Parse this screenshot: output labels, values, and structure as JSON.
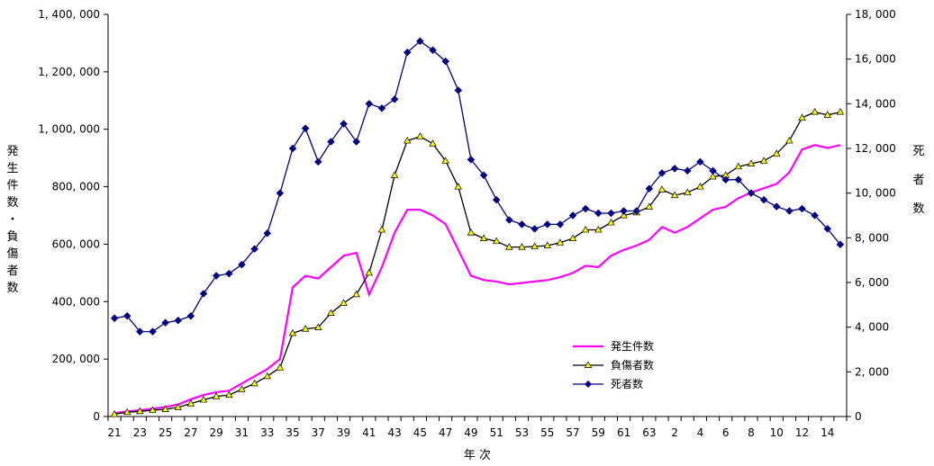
{
  "chart_data": {
    "type": "line",
    "xlabel": "年 次",
    "y_left_label": "発生件数・負傷者数",
    "y_right_label": "死者数",
    "y_left_range": [
      0,
      1400000
    ],
    "y_right_range": [
      0,
      18000
    ],
    "y_left_ticks": [
      "0",
      "200, 000",
      "400, 000",
      "600, 000",
      "800, 000",
      "1, 000, 000",
      "1, 200, 000",
      "1, 400, 000"
    ],
    "y_right_ticks": [
      "0",
      "2, 000",
      "4, 000",
      "6, 000",
      "8, 000",
      "10, 000",
      "12, 000",
      "14, 000",
      "16, 000",
      "18, 000"
    ],
    "x_tick_labels": [
      "21",
      "23",
      "25",
      "27",
      "29",
      "31",
      "33",
      "35",
      "37",
      "39",
      "41",
      "43",
      "45",
      "47",
      "49",
      "51",
      "53",
      "55",
      "57",
      "59",
      "61",
      "63",
      "2",
      "4",
      "6",
      "8",
      "10",
      "12",
      "14"
    ],
    "grid": false,
    "legend_position": "bottom-right",
    "legend": [
      {
        "name": "発生件数",
        "color": "#ff00ff",
        "marker": "none"
      },
      {
        "name": "負傷者数",
        "color": "#000000",
        "marker": "triangle-yellow"
      },
      {
        "name": "死者数",
        "color": "#000080",
        "marker": "diamond"
      }
    ],
    "series": [
      {
        "name": "発生件数",
        "axis": "left",
        "color": "#ff00ff",
        "values": [
          12000,
          18000,
          22000,
          27000,
          33000,
          42000,
          60000,
          75000,
          85000,
          90000,
          115000,
          140000,
          165000,
          200000,
          450000,
          490000,
          480000,
          520000,
          560000,
          570000,
          425000,
          520000,
          640000,
          720000,
          720000,
          700000,
          670000,
          580000,
          490000,
          475000,
          470000,
          460000,
          465000,
          470000,
          475000,
          485000,
          500000,
          525000,
          520000,
          560000,
          580000,
          595000,
          615000,
          660000,
          640000,
          660000,
          690000,
          720000,
          730000,
          760000,
          780000,
          795000,
          810000,
          850000,
          930000,
          945000,
          935000,
          945000
        ]
      },
      {
        "name": "負傷者数",
        "axis": "left",
        "color": "#000000",
        "values": [
          8000,
          15000,
          18000,
          22000,
          25000,
          32000,
          45000,
          58000,
          70000,
          75000,
          95000,
          115000,
          140000,
          170000,
          290000,
          305000,
          310000,
          360000,
          395000,
          425000,
          500000,
          650000,
          840000,
          960000,
          975000,
          950000,
          890000,
          800000,
          640000,
          620000,
          610000,
          590000,
          590000,
          592000,
          595000,
          605000,
          620000,
          650000,
          650000,
          675000,
          700000,
          710000,
          730000,
          790000,
          770000,
          780000,
          800000,
          835000,
          840000,
          870000,
          880000,
          890000,
          915000,
          960000,
          1040000,
          1060000,
          1050000,
          1060000
        ]
      },
      {
        "name": "死者数",
        "axis": "right",
        "color": "#000080",
        "values": [
          4400,
          4500,
          3800,
          3800,
          4200,
          4300,
          4500,
          5500,
          6300,
          6400,
          6800,
          7500,
          8200,
          10000,
          12000,
          12900,
          11400,
          12300,
          13100,
          12300,
          14000,
          13800,
          14200,
          16300,
          16800,
          16400,
          15900,
          14600,
          11500,
          10800,
          9700,
          8800,
          8600,
          8400,
          8600,
          8600,
          9000,
          9300,
          9100,
          9100,
          9200,
          9200,
          10200,
          10900,
          11100,
          11000,
          11400,
          11000,
          10600,
          10600,
          10000,
          9700,
          9400,
          9200,
          9300,
          9000,
          8400,
          7700
        ]
      }
    ]
  }
}
